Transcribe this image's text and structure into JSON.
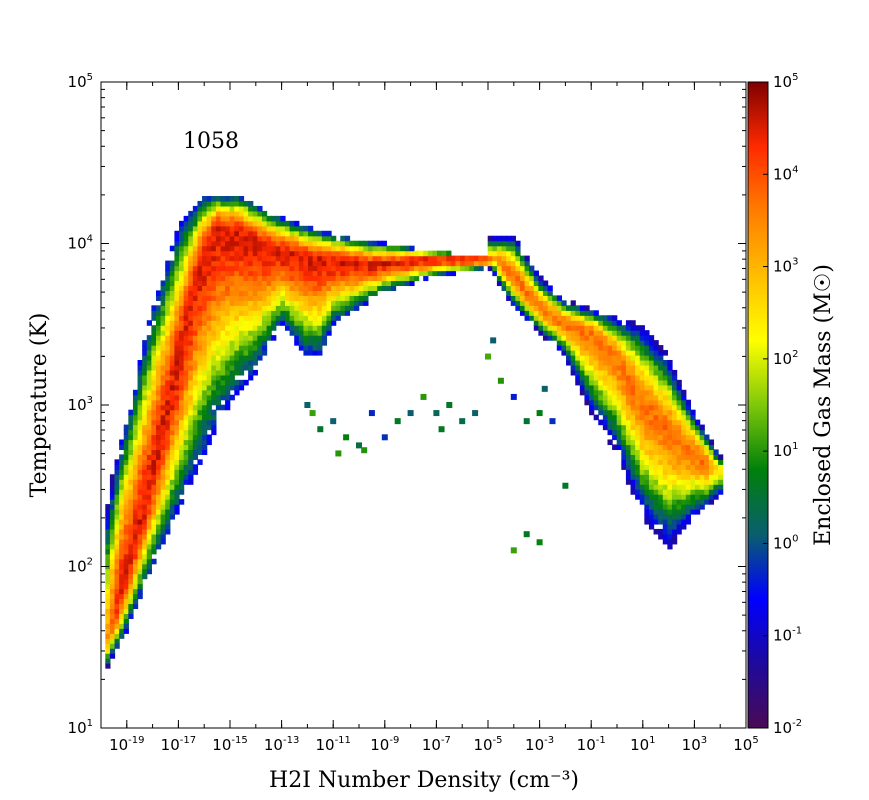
{
  "chart_data": {
    "type": "heatmap",
    "title": "",
    "annotation": "1058",
    "xlabel": "H2I Number Density (cm⁻³)",
    "ylabel": "Temperature (K)",
    "x_scale": "log",
    "y_scale": "log",
    "xlim": [
      1e-20,
      100000.0
    ],
    "ylim": [
      10,
      100000
    ],
    "grid": false,
    "x_ticks": [
      {
        "base": "10",
        "exp": "-19"
      },
      {
        "base": "10",
        "exp": "-17"
      },
      {
        "base": "10",
        "exp": "-15"
      },
      {
        "base": "10",
        "exp": "-13"
      },
      {
        "base": "10",
        "exp": "-11"
      },
      {
        "base": "10",
        "exp": "-9"
      },
      {
        "base": "10",
        "exp": "-7"
      },
      {
        "base": "10",
        "exp": "-5"
      },
      {
        "base": "10",
        "exp": "-3"
      },
      {
        "base": "10",
        "exp": "-1"
      },
      {
        "base": "10",
        "exp": "1"
      },
      {
        "base": "10",
        "exp": "3"
      },
      {
        "base": "10",
        "exp": "5"
      }
    ],
    "y_ticks": [
      {
        "base": "10",
        "exp": "1"
      },
      {
        "base": "10",
        "exp": "2"
      },
      {
        "base": "10",
        "exp": "3"
      },
      {
        "base": "10",
        "exp": "4"
      },
      {
        "base": "10",
        "exp": "5"
      }
    ],
    "colorbar": {
      "label": "Enclosed Gas Mass (M☉)",
      "scale": "log",
      "range": [
        0.01,
        100000
      ],
      "colormap": [
        "#4a0a55",
        "#1e0a9c",
        "#0000ff",
        "#0a5f6e",
        "#00800a",
        "#7fc80a",
        "#ffff00",
        "#ffbe00",
        "#ff7d00",
        "#ff2a00",
        "#800000"
      ],
      "ticks": [
        {
          "base": "10",
          "exp": "-2"
        },
        {
          "base": "10",
          "exp": "-1"
        },
        {
          "base": "10",
          "exp": "0"
        },
        {
          "base": "10",
          "exp": "1"
        },
        {
          "base": "10",
          "exp": "2"
        },
        {
          "base": "10",
          "exp": "3"
        },
        {
          "base": "10",
          "exp": "4"
        },
        {
          "base": "10",
          "exp": "5"
        }
      ]
    },
    "regions": {
      "main_lobe": {
        "ridge": [
          [
            -19.8,
            1.5
          ],
          [
            -19.0,
            1.95
          ],
          [
            -18.0,
            2.55
          ],
          [
            -17.0,
            3.25
          ],
          [
            -16.2,
            3.85
          ],
          [
            -15.5,
            4.1
          ],
          [
            -14.5,
            4.05
          ],
          [
            -13.5,
            3.97
          ],
          [
            -12.5,
            3.93
          ],
          [
            -11.5,
            3.9
          ],
          [
            -10.5,
            3.88
          ],
          [
            -9.5,
            3.87
          ],
          [
            -8.5,
            3.88
          ],
          [
            -7.5,
            3.9
          ],
          [
            -6.5,
            3.9
          ],
          [
            -5.5,
            3.9
          ],
          [
            -4.5,
            3.9
          ]
        ],
        "lower_edge": [
          [
            -19.8,
            1.35
          ],
          [
            -19.0,
            1.6
          ],
          [
            -18.0,
            2.0
          ],
          [
            -17.0,
            2.35
          ],
          [
            -16.0,
            2.7
          ],
          [
            -15.0,
            3.0
          ],
          [
            -14.0,
            3.2
          ],
          [
            -13.0,
            3.5
          ],
          [
            -12.0,
            3.3
          ],
          [
            -11.5,
            3.3
          ],
          [
            -11.0,
            3.5
          ],
          [
            -10.0,
            3.6
          ],
          [
            -9.0,
            3.7
          ],
          [
            -8.0,
            3.75
          ],
          [
            -7.0,
            3.8
          ],
          [
            -6.0,
            3.82
          ],
          [
            -5.0,
            3.85
          ]
        ],
        "upper_edge": [
          [
            -19.8,
            2.4
          ],
          [
            -19.0,
            2.9
          ],
          [
            -18.0,
            3.6
          ],
          [
            -17.0,
            4.1
          ],
          [
            -16.0,
            4.3
          ],
          [
            -14.5,
            4.3
          ],
          [
            -13.5,
            4.2
          ],
          [
            -12.5,
            4.13
          ],
          [
            -11.5,
            4.08
          ],
          [
            -10.5,
            4.04
          ],
          [
            -9.5,
            4.01
          ],
          [
            -8.5,
            3.99
          ],
          [
            -7.5,
            3.96
          ],
          [
            -6.5,
            3.94
          ],
          [
            -5.5,
            3.93
          ],
          [
            -4.5,
            3.92
          ]
        ],
        "peak_log_mass": 4.5
      },
      "dense_branch": {
        "ridge": [
          [
            -5.0,
            3.95
          ],
          [
            -4.0,
            3.8
          ],
          [
            -3.0,
            3.6
          ],
          [
            -2.0,
            3.5
          ],
          [
            -1.0,
            3.45
          ],
          [
            0.0,
            3.3
          ],
          [
            1.0,
            3.0
          ],
          [
            2.0,
            2.85
          ],
          [
            3.0,
            2.7
          ],
          [
            4.0,
            2.6
          ]
        ],
        "lower_edge": [
          [
            -5.0,
            3.85
          ],
          [
            -4.0,
            3.6
          ],
          [
            -3.0,
            3.45
          ],
          [
            -2.0,
            3.3
          ],
          [
            -1.0,
            2.95
          ],
          [
            0.0,
            2.7
          ],
          [
            1.0,
            2.3
          ],
          [
            2.0,
            2.1
          ],
          [
            3.0,
            2.3
          ],
          [
            4.0,
            2.4
          ]
        ],
        "upper_edge": [
          [
            -5.0,
            4.05
          ],
          [
            -4.0,
            4.05
          ],
          [
            -3.0,
            3.8
          ],
          [
            -2.0,
            3.65
          ],
          [
            -1.0,
            3.6
          ],
          [
            0.0,
            3.55
          ],
          [
            1.0,
            3.5
          ],
          [
            2.0,
            3.3
          ],
          [
            3.0,
            2.95
          ],
          [
            4.0,
            2.7
          ]
        ],
        "peak_log_mass": 3.7
      },
      "sparse_points": [
        [
          -11.5,
          2.85
        ],
        [
          -11.0,
          2.9
        ],
        [
          -10.5,
          2.8
        ],
        [
          -10.0,
          2.75
        ],
        [
          -9.5,
          2.95
        ],
        [
          -9.0,
          2.8
        ],
        [
          -8.5,
          2.9
        ],
        [
          -8.0,
          2.95
        ],
        [
          -7.0,
          2.95
        ],
        [
          -6.5,
          3.0
        ],
        [
          -6.0,
          2.9
        ],
        [
          -5.5,
          2.95
        ],
        [
          -5.0,
          3.3
        ],
        [
          -4.5,
          3.15
        ],
        [
          -4.0,
          3.05
        ],
        [
          -3.5,
          2.9
        ],
        [
          -3.0,
          2.95
        ],
        [
          -2.5,
          2.9
        ],
        [
          -2.0,
          2.5
        ],
        [
          -3.5,
          2.2
        ],
        [
          -4.0,
          2.1
        ],
        [
          -3.0,
          2.15
        ],
        [
          -10.8,
          2.7
        ],
        [
          -9.8,
          2.72
        ],
        [
          -12.0,
          3.0
        ],
        [
          -11.8,
          2.95
        ],
        [
          -7.5,
          3.05
        ],
        [
          -6.8,
          2.85
        ],
        [
          -4.8,
          3.4
        ],
        [
          -2.8,
          3.1
        ]
      ]
    }
  }
}
